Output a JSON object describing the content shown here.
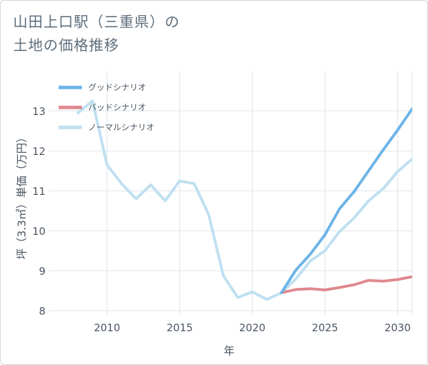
{
  "title": {
    "line1": "山田上口駅（三重県）の",
    "line2": "土地の価格推移"
  },
  "chart_data": {
    "type": "line",
    "title": "山田上口駅（三重県）の土地の価格推移",
    "xlabel": "年",
    "ylabel": "坪（3.3㎡）単価（万円）",
    "xlim": [
      2006,
      2031
    ],
    "ylim": [
      7.9,
      14.0
    ],
    "xticks": [
      2010,
      2015,
      2020,
      2025,
      2030
    ],
    "yticks": [
      8,
      9,
      10,
      11,
      12,
      13
    ],
    "grid": true,
    "legend_position": "top-left",
    "series": [
      {
        "name": "グッドシナリオ",
        "color": "#6cb4e8",
        "x": [
          2022,
          2023,
          2024,
          2025,
          2026,
          2027,
          2028,
          2029,
          2030,
          2031
        ],
        "values": [
          8.45,
          9.02,
          9.42,
          9.9,
          10.55,
          10.98,
          11.5,
          12.02,
          12.52,
          13.05
        ]
      },
      {
        "name": "バッドシナリオ",
        "color": "#e0888f",
        "x": [
          2022,
          2023,
          2024,
          2025,
          2026,
          2027,
          2028,
          2029,
          2030,
          2031
        ],
        "values": [
          8.45,
          8.53,
          8.55,
          8.52,
          8.58,
          8.65,
          8.76,
          8.74,
          8.78,
          8.85
        ]
      },
      {
        "name": "ノーマルシナリオ",
        "color": "#bfe0f0",
        "x": [
          2008,
          2009,
          2010,
          2011,
          2012,
          2013,
          2014,
          2015,
          2016,
          2017,
          2018,
          2019,
          2020,
          2021,
          2022,
          2023,
          2024,
          2025,
          2026,
          2027,
          2028,
          2029,
          2030,
          2031
        ],
        "values": [
          12.95,
          13.25,
          11.65,
          11.18,
          10.8,
          11.15,
          10.75,
          11.25,
          11.18,
          10.4,
          8.88,
          8.33,
          8.47,
          8.28,
          8.45,
          8.8,
          9.25,
          9.5,
          9.98,
          10.32,
          10.75,
          11.05,
          11.48,
          11.8
        ]
      }
    ]
  }
}
